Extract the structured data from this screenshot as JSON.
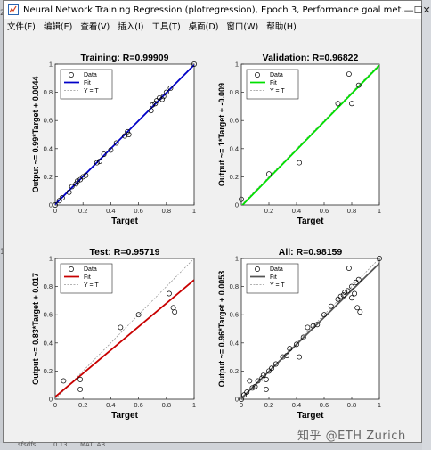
{
  "window": {
    "title": "Neural Network Training Regression (plotregression), Epoch 3, Performance goal met.",
    "minimize_glyph": "—",
    "maximize_glyph": "☐",
    "close_glyph": "✕"
  },
  "menu": [
    "文件(F)",
    "编辑(E)",
    "查看(V)",
    "插入(I)",
    "工具(T)",
    "桌面(D)",
    "窗口(W)",
    "帮助(H)"
  ],
  "watermark": "知乎 @ETH Zurich",
  "left_strip_labels": [
    "2",
    "1"
  ],
  "bottom_bar_labels": [
    "sfsdfs",
    "0.13",
    "MATLAB"
  ],
  "colors": {
    "training_fit": "#0000c8",
    "validation_fit": "#00e000",
    "test_fit": "#c80000",
    "all_fit": "#555555",
    "marker": "#000000",
    "identity": "#999999"
  },
  "icons": {
    "app": "matlab-figure-icon"
  },
  "chart_data": [
    {
      "type": "scatter",
      "title": "Training: R=0.99909",
      "xlabel": "Target",
      "ylabel": "Output ~= 0.99*Target + 0.0044",
      "xlim": [
        0,
        1
      ],
      "ylim": [
        0,
        1
      ],
      "xticks": [
        "0",
        "0.2",
        "0.4",
        "0.6",
        "0.8",
        "1"
      ],
      "yticks": [
        "0",
        "0.2",
        "0.4",
        "0.6",
        "0.8",
        "1"
      ],
      "legend": [
        "Data",
        "Fit",
        "Y = T"
      ],
      "legend_position": "top-left",
      "fit": {
        "slope": 0.99,
        "intercept": 0.0044
      },
      "points": [
        [
          0,
          0
        ],
        [
          0.03,
          0.03
        ],
        [
          0.05,
          0.05
        ],
        [
          0.1,
          0.09
        ],
        [
          0.12,
          0.13
        ],
        [
          0.15,
          0.15
        ],
        [
          0.16,
          0.17
        ],
        [
          0.18,
          0.18
        ],
        [
          0.2,
          0.2
        ],
        [
          0.22,
          0.21
        ],
        [
          0.3,
          0.3
        ],
        [
          0.32,
          0.31
        ],
        [
          0.35,
          0.36
        ],
        [
          0.4,
          0.39
        ],
        [
          0.44,
          0.44
        ],
        [
          0.5,
          0.49
        ],
        [
          0.52,
          0.52
        ],
        [
          0.53,
          0.5
        ],
        [
          0.69,
          0.67
        ],
        [
          0.7,
          0.71
        ],
        [
          0.72,
          0.72
        ],
        [
          0.73,
          0.74
        ],
        [
          0.75,
          0.76
        ],
        [
          0.77,
          0.75
        ],
        [
          0.78,
          0.77
        ],
        [
          0.8,
          0.8
        ],
        [
          0.83,
          0.83
        ],
        [
          1,
          1
        ]
      ]
    },
    {
      "type": "scatter",
      "title": "Validation: R=0.96822",
      "xlabel": "Target",
      "ylabel": "Output ~= 1*Target + -0.009",
      "xlim": [
        0,
        1
      ],
      "ylim": [
        0,
        1
      ],
      "xticks": [
        "0.2",
        "0.4",
        "0.6",
        "0.8",
        "1"
      ],
      "yticks": [
        "0",
        "0.2",
        "0.4",
        "0.6",
        "0.8",
        "1"
      ],
      "legend": [
        "Data",
        "Fit",
        "Y = T"
      ],
      "legend_position": "top-left",
      "fit": {
        "slope": 1.0,
        "intercept": -0.009
      },
      "points": [
        [
          0,
          0.04
        ],
        [
          0.2,
          0.22
        ],
        [
          0.42,
          0.3
        ],
        [
          0.7,
          0.72
        ],
        [
          0.78,
          0.93
        ],
        [
          0.8,
          0.72
        ],
        [
          0.85,
          0.85
        ]
      ]
    },
    {
      "type": "scatter",
      "title": "Test: R=0.95719",
      "xlabel": "Target",
      "ylabel": "Output ~= 0.83*Target + 0.017",
      "xlim": [
        0,
        1
      ],
      "ylim": [
        0,
        1
      ],
      "xticks": [
        "0",
        "0.2",
        "0.4",
        "0.6",
        "0.8",
        "1"
      ],
      "yticks": [
        "0",
        "0.2",
        "0.4",
        "0.6",
        "0.8",
        "1"
      ],
      "legend": [
        "Data",
        "Fit",
        "Y = T"
      ],
      "legend_position": "top-left",
      "fit": {
        "slope": 0.83,
        "intercept": 0.017
      },
      "points": [
        [
          0.06,
          0.13
        ],
        [
          0.18,
          0.07
        ],
        [
          0.18,
          0.14
        ],
        [
          0.47,
          0.51
        ],
        [
          0.6,
          0.6
        ],
        [
          0.82,
          0.75
        ],
        [
          0.85,
          0.65
        ],
        [
          0.86,
          0.62
        ]
      ]
    },
    {
      "type": "scatter",
      "title": "All: R=0.98159",
      "xlabel": "Target",
      "ylabel": "Output ~= 0.96*Target + 0.0053",
      "xlim": [
        0,
        1
      ],
      "ylim": [
        0,
        1
      ],
      "xticks": [
        "0",
        "0.2",
        "0.4",
        "0.6",
        "0.8",
        "1"
      ],
      "yticks": [
        "0",
        "0.2",
        "0.4",
        "0.6",
        "0.8",
        "1"
      ],
      "legend": [
        "Data",
        "Fit",
        "Y = T"
      ],
      "legend_position": "top-left",
      "fit": {
        "slope": 0.96,
        "intercept": 0.0053
      },
      "points": [
        [
          0,
          0
        ],
        [
          0.02,
          0.03
        ],
        [
          0.04,
          0.05
        ],
        [
          0.06,
          0.13
        ],
        [
          0.08,
          0.08
        ],
        [
          0.1,
          0.09
        ],
        [
          0.12,
          0.13
        ],
        [
          0.15,
          0.15
        ],
        [
          0.16,
          0.17
        ],
        [
          0.18,
          0.07
        ],
        [
          0.18,
          0.14
        ],
        [
          0.2,
          0.2
        ],
        [
          0.22,
          0.22
        ],
        [
          0.25,
          0.25
        ],
        [
          0.3,
          0.3
        ],
        [
          0.33,
          0.31
        ],
        [
          0.35,
          0.36
        ],
        [
          0.4,
          0.39
        ],
        [
          0.42,
          0.3
        ],
        [
          0.45,
          0.44
        ],
        [
          0.48,
          0.51
        ],
        [
          0.52,
          0.52
        ],
        [
          0.55,
          0.53
        ],
        [
          0.6,
          0.6
        ],
        [
          0.65,
          0.66
        ],
        [
          0.7,
          0.71
        ],
        [
          0.72,
          0.73
        ],
        [
          0.74,
          0.74
        ],
        [
          0.75,
          0.76
        ],
        [
          0.77,
          0.77
        ],
        [
          0.78,
          0.93
        ],
        [
          0.8,
          0.8
        ],
        [
          0.8,
          0.72
        ],
        [
          0.82,
          0.75
        ],
        [
          0.83,
          0.83
        ],
        [
          0.84,
          0.65
        ],
        [
          0.85,
          0.85
        ],
        [
          0.86,
          0.62
        ],
        [
          1,
          1
        ]
      ]
    }
  ]
}
